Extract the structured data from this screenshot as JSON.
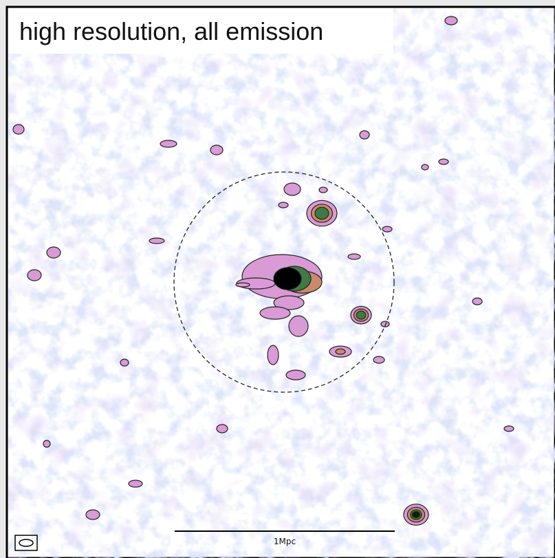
{
  "title": "high resolution, all emission",
  "scale_bar": {
    "label": "1Mpc"
  }
}
